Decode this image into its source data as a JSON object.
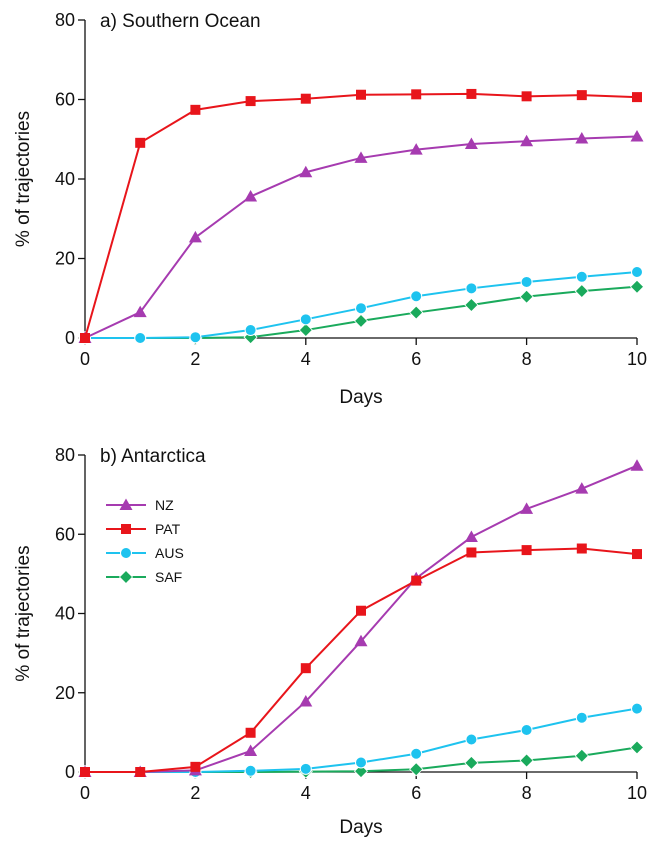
{
  "chart_data": [
    {
      "type": "line",
      "title": "a) Southern Ocean",
      "xlabel": "Days",
      "ylabel": "% of trajectories",
      "xlim": [
        0,
        10
      ],
      "ylim": [
        0,
        80
      ],
      "x_ticks": [
        0,
        2,
        4,
        6,
        8,
        10
      ],
      "y_ticks": [
        0,
        20,
        40,
        60,
        80
      ],
      "x": [
        0,
        1,
        2,
        3,
        4,
        5,
        6,
        7,
        8,
        9,
        10
      ],
      "grid": false,
      "legend": null,
      "series": [
        {
          "key": "nz",
          "color": "#a63bb0",
          "marker": "triangle",
          "values": [
            0,
            6.5,
            25.3,
            35.6,
            41.7,
            45.3,
            47.4,
            48.8,
            49.5,
            50.2,
            50.7
          ]
        },
        {
          "key": "pat",
          "color": "#e8151b",
          "marker": "square",
          "values": [
            0,
            49.1,
            57.4,
            59.6,
            60.2,
            61.2,
            61.3,
            61.4,
            60.8,
            61.1,
            60.6
          ]
        },
        {
          "key": "aus",
          "color": "#1ec3ef",
          "marker": "circle",
          "values": [
            0,
            0,
            0.2,
            2,
            4.7,
            7.5,
            10.5,
            12.5,
            14.1,
            15.4,
            16.6
          ]
        },
        {
          "key": "saf",
          "color": "#1aaa5c",
          "marker": "diamond",
          "values": [
            0,
            0,
            0,
            0.2,
            2,
            4.3,
            6.4,
            8.3,
            10.4,
            11.8,
            12.9
          ]
        }
      ]
    },
    {
      "type": "line",
      "title": "b) Antarctica",
      "xlabel": "Days",
      "ylabel": "% of trajectories",
      "xlim": [
        0,
        10
      ],
      "ylim": [
        0,
        80
      ],
      "x_ticks": [
        0,
        2,
        4,
        6,
        8,
        10
      ],
      "y_ticks": [
        0,
        20,
        40,
        60,
        80
      ],
      "x": [
        0,
        1,
        2,
        3,
        4,
        5,
        6,
        7,
        8,
        9,
        10
      ],
      "grid": false,
      "legend": "upper-left",
      "series": [
        {
          "key": "nz",
          "name": "NZ",
          "color": "#a63bb0",
          "marker": "triangle",
          "values": [
            0,
            0,
            0.4,
            5.3,
            17.8,
            33,
            48.9,
            59.3,
            66.4,
            71.5,
            77.3
          ]
        },
        {
          "key": "pat",
          "name": "PAT",
          "color": "#e8151b",
          "marker": "square",
          "values": [
            0,
            0,
            1.3,
            9.9,
            26.2,
            40.7,
            48.3,
            55.4,
            56,
            56.4,
            55
          ]
        },
        {
          "key": "aus",
          "name": "AUS",
          "color": "#1ec3ef",
          "marker": "circle",
          "values": [
            0,
            0,
            0,
            0.3,
            0.8,
            2.4,
            4.6,
            8.2,
            10.6,
            13.7,
            16
          ]
        },
        {
          "key": "saf",
          "name": "SAF",
          "color": "#1aaa5c",
          "marker": "diamond",
          "values": [
            0,
            0,
            0,
            0,
            0.1,
            0.2,
            0.7,
            2.3,
            2.9,
            4.1,
            6.2
          ]
        }
      ]
    }
  ]
}
